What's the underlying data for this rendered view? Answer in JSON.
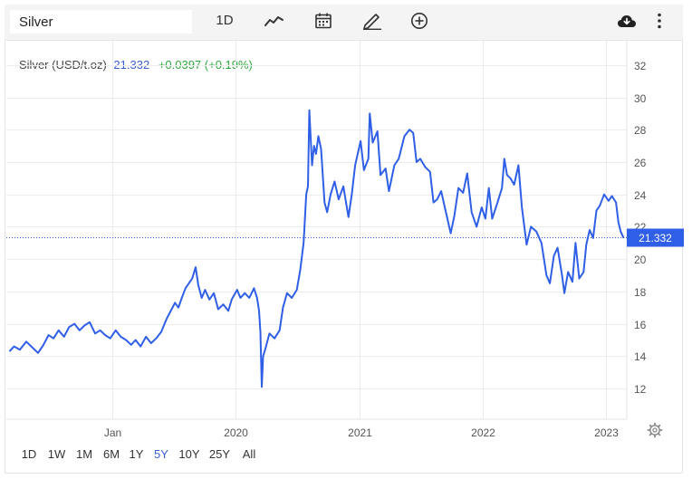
{
  "toolbar": {
    "search_value": "Silver",
    "interval_label": "1D",
    "icons": [
      "line-chart-icon",
      "calendar-icon",
      "pencil-icon",
      "add-circle-icon",
      "download-cloud-icon",
      "more-vertical-icon"
    ]
  },
  "legend": {
    "name": "Silver (USD/t.oz)",
    "price": "21.332",
    "change": "+0.0397 (+0.19%)"
  },
  "ranges": {
    "items": [
      "1D",
      "1W",
      "1M",
      "6M",
      "1Y",
      "5Y",
      "10Y",
      "25Y",
      "All"
    ],
    "active": "5Y"
  },
  "colors": {
    "line": "#2f5fe6",
    "accent": "#3a5fd3",
    "positive": "#2eaa3c",
    "price_tag_bg": "#2f5fe6"
  },
  "chart_data": {
    "type": "line",
    "series": [
      {
        "name": "",
        "points": [
          [
            "2018-03-01",
            14.3
          ],
          [
            "2018-03-15",
            14.6
          ],
          [
            "2018-04-01",
            14.4
          ],
          [
            "2018-04-20",
            14.9
          ],
          [
            "2018-05-10",
            14.5
          ],
          [
            "2018-05-25",
            14.2
          ],
          [
            "2018-06-10",
            14.7
          ],
          [
            "2018-06-25",
            15.3
          ],
          [
            "2018-07-10",
            15.1
          ],
          [
            "2018-07-25",
            15.6
          ],
          [
            "2018-08-10",
            15.2
          ],
          [
            "2018-08-25",
            15.8
          ],
          [
            "2018-09-10",
            16.0
          ],
          [
            "2018-09-25",
            15.6
          ],
          [
            "2018-10-10",
            15.9
          ],
          [
            "2018-10-25",
            16.1
          ],
          [
            "2018-11-10",
            15.4
          ],
          [
            "2018-11-25",
            15.6
          ],
          [
            "2018-12-10",
            15.3
          ],
          [
            "2018-12-25",
            15.1
          ],
          [
            "2019-01-10",
            15.6
          ],
          [
            "2019-01-25",
            15.2
          ],
          [
            "2019-02-10",
            15.0
          ],
          [
            "2019-02-25",
            14.7
          ],
          [
            "2019-03-10",
            15.0
          ],
          [
            "2019-03-25",
            14.6
          ],
          [
            "2019-04-10",
            15.2
          ],
          [
            "2019-04-25",
            14.8
          ],
          [
            "2019-05-10",
            15.1
          ],
          [
            "2019-05-25",
            15.5
          ],
          [
            "2019-06-10",
            16.3
          ],
          [
            "2019-06-25",
            16.9
          ],
          [
            "2019-07-05",
            17.3
          ],
          [
            "2019-07-15",
            17.0
          ],
          [
            "2019-07-25",
            17.6
          ],
          [
            "2019-08-05",
            18.2
          ],
          [
            "2019-08-15",
            18.5
          ],
          [
            "2019-08-25",
            18.8
          ],
          [
            "2019-09-04",
            19.5
          ],
          [
            "2019-09-12",
            18.4
          ],
          [
            "2019-09-22",
            17.6
          ],
          [
            "2019-10-02",
            18.1
          ],
          [
            "2019-10-15",
            17.5
          ],
          [
            "2019-10-28",
            17.9
          ],
          [
            "2019-11-10",
            16.9
          ],
          [
            "2019-11-25",
            17.2
          ],
          [
            "2019-12-10",
            16.8
          ],
          [
            "2019-12-20",
            17.5
          ],
          [
            "2020-01-05",
            18.1
          ],
          [
            "2020-01-15",
            17.6
          ],
          [
            "2020-01-28",
            17.9
          ],
          [
            "2020-02-10",
            17.6
          ],
          [
            "2020-02-24",
            18.2
          ],
          [
            "2020-03-04",
            17.6
          ],
          [
            "2020-03-10",
            16.8
          ],
          [
            "2020-03-14",
            15.5
          ],
          [
            "2020-03-18",
            12.1
          ],
          [
            "2020-03-22",
            14.0
          ],
          [
            "2020-03-28",
            14.4
          ],
          [
            "2020-04-10",
            15.4
          ],
          [
            "2020-04-25",
            15.1
          ],
          [
            "2020-05-10",
            15.6
          ],
          [
            "2020-05-20",
            17.0
          ],
          [
            "2020-06-01",
            17.9
          ],
          [
            "2020-06-15",
            17.6
          ],
          [
            "2020-06-30",
            18.1
          ],
          [
            "2020-07-10",
            19.3
          ],
          [
            "2020-07-20",
            21.0
          ],
          [
            "2020-07-28",
            24.0
          ],
          [
            "2020-08-02",
            24.5
          ],
          [
            "2020-08-06",
            29.2
          ],
          [
            "2020-08-10",
            27.5
          ],
          [
            "2020-08-14",
            25.8
          ],
          [
            "2020-08-20",
            27.0
          ],
          [
            "2020-08-26",
            26.5
          ],
          [
            "2020-09-02",
            27.6
          ],
          [
            "2020-09-10",
            26.8
          ],
          [
            "2020-09-20",
            23.5
          ],
          [
            "2020-09-28",
            22.9
          ],
          [
            "2020-10-08",
            24.0
          ],
          [
            "2020-10-20",
            24.8
          ],
          [
            "2020-11-01",
            23.7
          ],
          [
            "2020-11-15",
            24.5
          ],
          [
            "2020-11-30",
            22.6
          ],
          [
            "2020-12-10",
            24.0
          ],
          [
            "2020-12-20",
            25.8
          ],
          [
            "2021-01-05",
            27.3
          ],
          [
            "2021-01-15",
            25.5
          ],
          [
            "2021-01-28",
            26.2
          ],
          [
            "2021-02-01",
            29.0
          ],
          [
            "2021-02-10",
            27.2
          ],
          [
            "2021-02-24",
            27.9
          ],
          [
            "2021-03-05",
            25.2
          ],
          [
            "2021-03-20",
            25.6
          ],
          [
            "2021-03-30",
            24.2
          ],
          [
            "2021-04-15",
            25.8
          ],
          [
            "2021-04-28",
            26.2
          ],
          [
            "2021-05-15",
            27.6
          ],
          [
            "2021-05-30",
            28.0
          ],
          [
            "2021-06-10",
            27.8
          ],
          [
            "2021-06-20",
            26.0
          ],
          [
            "2021-07-01",
            26.2
          ],
          [
            "2021-07-15",
            25.7
          ],
          [
            "2021-07-30",
            25.4
          ],
          [
            "2021-08-09",
            23.5
          ],
          [
            "2021-08-20",
            23.7
          ],
          [
            "2021-09-01",
            24.2
          ],
          [
            "2021-09-15",
            22.9
          ],
          [
            "2021-09-29",
            21.6
          ],
          [
            "2021-10-10",
            22.7
          ],
          [
            "2021-10-22",
            24.4
          ],
          [
            "2021-11-05",
            24.1
          ],
          [
            "2021-11-17",
            25.3
          ],
          [
            "2021-11-30",
            22.9
          ],
          [
            "2021-12-15",
            22.0
          ],
          [
            "2021-12-30",
            23.2
          ],
          [
            "2022-01-10",
            22.5
          ],
          [
            "2022-01-20",
            24.4
          ],
          [
            "2022-01-30",
            22.5
          ],
          [
            "2022-02-15",
            23.5
          ],
          [
            "2022-02-28",
            24.4
          ],
          [
            "2022-03-07",
            26.2
          ],
          [
            "2022-03-15",
            25.2
          ],
          [
            "2022-03-25",
            25.0
          ],
          [
            "2022-04-05",
            24.6
          ],
          [
            "2022-04-18",
            25.8
          ],
          [
            "2022-04-28",
            23.2
          ],
          [
            "2022-05-12",
            20.9
          ],
          [
            "2022-05-25",
            22.0
          ],
          [
            "2022-06-10",
            21.7
          ],
          [
            "2022-06-25",
            21.0
          ],
          [
            "2022-07-10",
            19.0
          ],
          [
            "2022-07-20",
            18.5
          ],
          [
            "2022-08-01",
            20.2
          ],
          [
            "2022-08-12",
            20.7
          ],
          [
            "2022-08-25",
            19.0
          ],
          [
            "2022-09-01",
            17.9
          ],
          [
            "2022-09-12",
            19.2
          ],
          [
            "2022-09-25",
            18.6
          ],
          [
            "2022-10-04",
            21.0
          ],
          [
            "2022-10-15",
            18.8
          ],
          [
            "2022-10-28",
            19.2
          ],
          [
            "2022-11-05",
            20.9
          ],
          [
            "2022-11-15",
            21.8
          ],
          [
            "2022-11-25",
            21.3
          ],
          [
            "2022-12-05",
            23.0
          ],
          [
            "2022-12-15",
            23.3
          ],
          [
            "2022-12-28",
            24.0
          ],
          [
            "2023-01-10",
            23.6
          ],
          [
            "2023-01-20",
            23.9
          ],
          [
            "2023-02-01",
            23.5
          ],
          [
            "2023-02-08",
            22.3
          ],
          [
            "2023-02-15",
            21.7
          ],
          [
            "2023-02-24",
            21.3
          ]
        ]
      }
    ],
    "x_ticks": [
      {
        "label": "Jan",
        "date": "2019-01-01"
      },
      {
        "label": "2020",
        "date": "2020-01-01"
      },
      {
        "label": "2021",
        "date": "2021-01-01"
      },
      {
        "label": "2022",
        "date": "2022-01-01"
      },
      {
        "label": "2023",
        "date": "2023-01-01"
      }
    ],
    "y_ticks": [
      12,
      14,
      16,
      18,
      20,
      22,
      24,
      26,
      28,
      30,
      32
    ],
    "xlim": [
      "2018-02-20",
      "2023-03-05"
    ],
    "ylim": [
      10.1,
      33.5
    ],
    "last_value": 21.332,
    "last_value_label": "21.332",
    "grid": true,
    "axis_position": "right"
  }
}
